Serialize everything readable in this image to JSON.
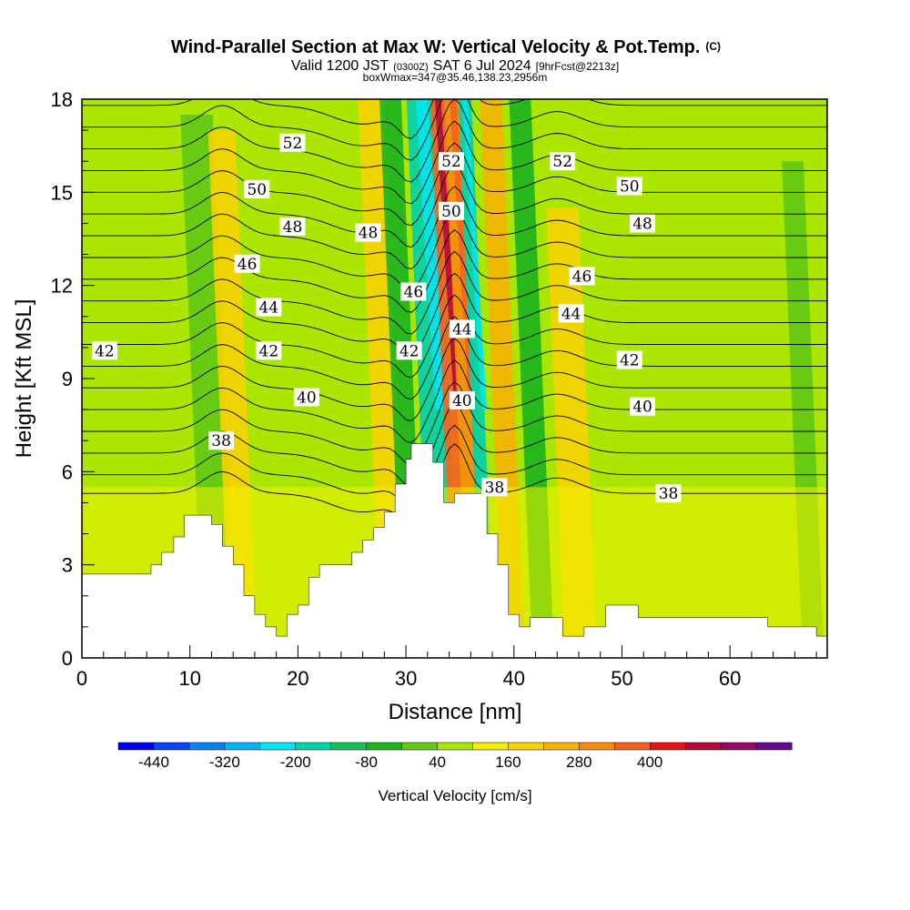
{
  "header": {
    "title": "Wind-Parallel Section at Max W: Vertical Velocity & Pot.Temp.",
    "copyright": "(C)",
    "valid_prefix": "Valid 1200 JST",
    "valid_utc": "(0300Z)",
    "valid_date": "SAT 6 Jul 2024",
    "forecast": "[9hrFcst@2213z]",
    "box_info": "boxWmax=347@35.46,138.23,2956m"
  },
  "chart_data": {
    "type": "heatmap",
    "xlabel": "Distance [nm]",
    "ylabel": "Height [Kft MSL]",
    "xlim": [
      0,
      69
    ],
    "ylim": [
      0,
      18
    ],
    "x_ticks": [
      0,
      10,
      20,
      30,
      40,
      50,
      60
    ],
    "y_ticks": [
      0,
      3,
      6,
      9,
      12,
      15,
      18
    ],
    "colorbar": {
      "label": "Vertical Velocity [cm/s]",
      "tick_labels": [
        "-440",
        "-320",
        "-200",
        "-80",
        "40",
        "160",
        "280",
        "400"
      ],
      "levels": [
        -500,
        -440,
        -380,
        -320,
        -260,
        -200,
        -140,
        -80,
        -20,
        40,
        100,
        160,
        220,
        280,
        340,
        400,
        460
      ],
      "colors": [
        "#0000f0",
        "#0a46f5",
        "#0a82f0",
        "#00b4f0",
        "#00e6f0",
        "#00d2aa",
        "#14be5a",
        "#1eb41e",
        "#64c814",
        "#aae600",
        "#f0f000",
        "#f5d200",
        "#f5b400",
        "#f58c0a",
        "#f5641e",
        "#e61414",
        "#b40a3c",
        "#960a64",
        "#640a8c"
      ]
    },
    "terrain_kft": [
      [
        0,
        2.7
      ],
      [
        6.4,
        2.7
      ],
      [
        6.4,
        3.0
      ],
      [
        7.4,
        3.0
      ],
      [
        7.4,
        3.4
      ],
      [
        8.5,
        3.4
      ],
      [
        8.5,
        3.9
      ],
      [
        9.5,
        3.9
      ],
      [
        9.5,
        4.6
      ],
      [
        12.0,
        4.6
      ],
      [
        12.0,
        4.3
      ],
      [
        13.0,
        4.3
      ],
      [
        13.0,
        3.6
      ],
      [
        14.0,
        3.6
      ],
      [
        14.0,
        3.0
      ],
      [
        15.0,
        3.0
      ],
      [
        15.0,
        2.0
      ],
      [
        16.0,
        2.0
      ],
      [
        16.0,
        1.4
      ],
      [
        17.0,
        1.4
      ],
      [
        17.0,
        1.0
      ],
      [
        18.0,
        1.0
      ],
      [
        18.0,
        0.7
      ],
      [
        19.0,
        0.7
      ],
      [
        19.0,
        1.4
      ],
      [
        20.0,
        1.4
      ],
      [
        20.0,
        1.7
      ],
      [
        21.0,
        1.7
      ],
      [
        21.0,
        2.6
      ],
      [
        22.0,
        2.6
      ],
      [
        22.0,
        3.0
      ],
      [
        25.0,
        3.0
      ],
      [
        25.0,
        3.4
      ],
      [
        26.0,
        3.4
      ],
      [
        26.0,
        3.8
      ],
      [
        27.0,
        3.8
      ],
      [
        27.0,
        4.2
      ],
      [
        28.0,
        4.2
      ],
      [
        28.0,
        4.7
      ],
      [
        29.0,
        4.7
      ],
      [
        29.0,
        5.6
      ],
      [
        30.0,
        5.6
      ],
      [
        30.0,
        6.4
      ],
      [
        30.5,
        6.4
      ],
      [
        30.5,
        6.9
      ],
      [
        32.5,
        6.9
      ],
      [
        32.5,
        6.3
      ],
      [
        33.5,
        6.3
      ],
      [
        33.5,
        5.0
      ],
      [
        34.5,
        5.0
      ],
      [
        34.5,
        5.3
      ],
      [
        37.5,
        5.3
      ],
      [
        37.5,
        4.0
      ],
      [
        38.5,
        4.0
      ],
      [
        38.5,
        3.0
      ],
      [
        39.5,
        3.0
      ],
      [
        39.5,
        1.4
      ],
      [
        40.5,
        1.4
      ],
      [
        40.5,
        1.0
      ],
      [
        41.5,
        1.0
      ],
      [
        41.5,
        1.3
      ],
      [
        44.5,
        1.3
      ],
      [
        44.5,
        0.7
      ],
      [
        46.5,
        0.7
      ],
      [
        46.5,
        1.0
      ],
      [
        48.5,
        1.0
      ],
      [
        48.5,
        1.7
      ],
      [
        51.5,
        1.7
      ],
      [
        51.5,
        1.3
      ],
      [
        63.5,
        1.3
      ],
      [
        63.5,
        1.0
      ],
      [
        68.0,
        1.0
      ],
      [
        68.0,
        0.7
      ],
      [
        69,
        0.7
      ]
    ],
    "isentropes": [
      {
        "theta": 38,
        "base": 5.3,
        "label": "38"
      },
      {
        "theta": 39,
        "base": 5.9,
        "label": ""
      },
      {
        "theta": 40,
        "base": 6.6,
        "label": "40"
      },
      {
        "theta": 41,
        "base": 7.3,
        "label": ""
      },
      {
        "theta": 42,
        "base": 8.0,
        "label": "42"
      },
      {
        "theta": 43,
        "base": 8.7,
        "label": ""
      },
      {
        "theta": 44,
        "base": 9.4,
        "label": "44"
      },
      {
        "theta": 45,
        "base": 10.1,
        "label": ""
      },
      {
        "theta": 46,
        "base": 10.8,
        "label": "46"
      },
      {
        "theta": 47,
        "base": 11.5,
        "label": ""
      },
      {
        "theta": 48,
        "base": 12.2,
        "label": "48"
      },
      {
        "theta": 49,
        "base": 12.9,
        "label": ""
      },
      {
        "theta": 50,
        "base": 13.6,
        "label": "50"
      },
      {
        "theta": 51,
        "base": 14.3,
        "label": ""
      },
      {
        "theta": 52,
        "base": 15.0,
        "label": "52"
      },
      {
        "theta": 53,
        "base": 15.7,
        "label": ""
      },
      {
        "theta": 54,
        "base": 16.4,
        "label": ""
      },
      {
        "theta": 55,
        "base": 17.1,
        "label": ""
      },
      {
        "theta": 56,
        "base": 17.8,
        "label": ""
      }
    ],
    "contour_labels": [
      {
        "text": "52",
        "x": 19.5,
        "y": 16.6
      },
      {
        "text": "52",
        "x": 34.2,
        "y": 16.0
      },
      {
        "text": "52",
        "x": 44.5,
        "y": 16.0
      },
      {
        "text": "50",
        "x": 16.2,
        "y": 15.1
      },
      {
        "text": "50",
        "x": 34.2,
        "y": 14.4
      },
      {
        "text": "50",
        "x": 50.7,
        "y": 15.2
      },
      {
        "text": "48",
        "x": 19.5,
        "y": 13.9
      },
      {
        "text": "48",
        "x": 26.5,
        "y": 13.7
      },
      {
        "text": "48",
        "x": 51.9,
        "y": 14.0
      },
      {
        "text": "46",
        "x": 15.3,
        "y": 12.7
      },
      {
        "text": "46",
        "x": 30.7,
        "y": 11.8
      },
      {
        "text": "46",
        "x": 46.3,
        "y": 12.3
      },
      {
        "text": "44",
        "x": 17.3,
        "y": 11.3
      },
      {
        "text": "44",
        "x": 35.2,
        "y": 10.6
      },
      {
        "text": "44",
        "x": 45.3,
        "y": 11.1
      },
      {
        "text": "42",
        "x": 2.1,
        "y": 9.9
      },
      {
        "text": "42",
        "x": 17.3,
        "y": 9.9
      },
      {
        "text": "42",
        "x": 30.3,
        "y": 9.9
      },
      {
        "text": "42",
        "x": 50.7,
        "y": 9.6
      },
      {
        "text": "40",
        "x": 20.8,
        "y": 8.4
      },
      {
        "text": "40",
        "x": 35.2,
        "y": 8.3
      },
      {
        "text": "40",
        "x": 51.9,
        "y": 8.1
      },
      {
        "text": "38",
        "x": 12.9,
        "y": 7.0
      },
      {
        "text": "38",
        "x": 38.2,
        "y": 5.5
      },
      {
        "text": "38",
        "x": 54.3,
        "y": 5.3
      }
    ],
    "vertical_velocity_bands": [
      {
        "x": 10.5,
        "width": 3.0,
        "w": -50,
        "top": 17.5
      },
      {
        "x": 13.0,
        "width": 2.5,
        "w": 100,
        "top": 17.0
      },
      {
        "x": 27.0,
        "width": 2.5,
        "w": 110,
        "top": 18.0
      },
      {
        "x": 29.0,
        "width": 2.0,
        "w": -100,
        "top": 18.0
      },
      {
        "x": 31.5,
        "width": 2.8,
        "w": -240,
        "top": 18.0
      },
      {
        "x": 33.7,
        "width": 1.4,
        "w": 330,
        "top": 18.0
      },
      {
        "x": 35.0,
        "width": 1.6,
        "w": 260,
        "top": 18.0
      },
      {
        "x": 36.3,
        "width": 1.2,
        "w": -260,
        "top": 18.0
      },
      {
        "x": 38.3,
        "width": 2.0,
        "w": 170,
        "top": 18.0
      },
      {
        "x": 41.0,
        "width": 2.0,
        "w": -90,
        "top": 18.0
      },
      {
        "x": 44.0,
        "width": 3.0,
        "w": 120,
        "top": 14.5
      },
      {
        "x": 66.0,
        "width": 2.0,
        "w": -30,
        "top": 16.0
      }
    ]
  }
}
